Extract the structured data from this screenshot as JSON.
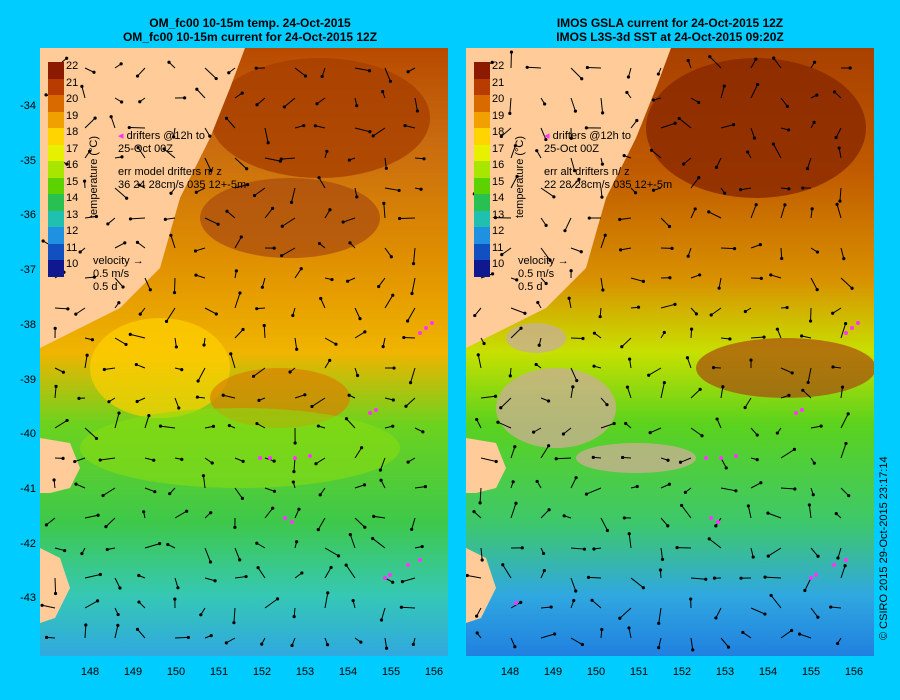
{
  "left_panel": {
    "title_line1": "OM_fc00 10-15m temp. 24-Oct-2015",
    "title_line2": "OM_fc00 10-15m current for 24-Oct-2015 12Z",
    "drifters_line1": "drifters @12h to",
    "drifters_line2": "25-Oct 00Z",
    "err_line1": "err model drifters n/ z",
    "err_line2": "36 24 28cm/s 035 12+-5m",
    "velocity_label": "velocity",
    "velocity_scale": "0.5 m/s",
    "velocity_time": "0.5 d"
  },
  "right_panel": {
    "title_line1": "IMOS GSLA current for 24-Oct-2015 12Z",
    "title_line2": "IMOS L3S-3d SST at 24-Oct-2015 09:20Z",
    "drifters_line1": "drifters @12h to",
    "drifters_line2": "25-Oct 00Z",
    "err_line1": "err alt drifters n/ z",
    "err_line2": "22 28 28cm/s 035 12+-5m",
    "velocity_label": "velocity",
    "velocity_scale": "0.5 m/s",
    "velocity_time": "0.5 d"
  },
  "colorbar": {
    "title": "temperature (°C)",
    "ticks": [
      "22",
      "21",
      "20",
      "19",
      "18",
      "17",
      "16",
      "15",
      "14",
      "13",
      "12",
      "11",
      "10"
    ],
    "colors": [
      "#8b1a00",
      "#b83c00",
      "#d96a00",
      "#f0a000",
      "#ffd400",
      "#e6f000",
      "#a8e600",
      "#5cd200",
      "#28c050",
      "#20c0b0",
      "#2090e0",
      "#1050c0",
      "#101890"
    ]
  },
  "axes": {
    "lat_labels": [
      "-34",
      "-35",
      "-36",
      "-37",
      "-38",
      "-39",
      "-40",
      "-41",
      "-42",
      "-43"
    ],
    "lon_labels": [
      "148",
      "149",
      "150",
      "151",
      "152",
      "153",
      "154",
      "155",
      "156"
    ]
  },
  "copyright": "© CSIRO 2015   29-Oct-2015 23:17:14",
  "colors": {
    "background": "#00ccff",
    "land": "#ffcc99",
    "drifter": "#ff33ff"
  }
}
